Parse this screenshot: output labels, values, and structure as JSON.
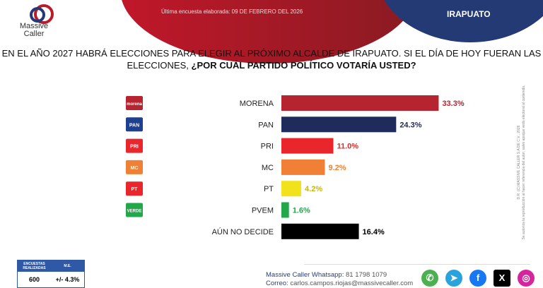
{
  "header": {
    "date_text": "Última encuesta elaborada: 09 DE FEBRERO DEL 2026",
    "city": "IRAPUATO",
    "logo_text": [
      "Massive",
      "Caller"
    ]
  },
  "question": {
    "part1": "EN EL AÑO 2027 HABRÁ ELECCIONES PARA ELEGIR AL PRÓXIMO ALCALDE DE IRAPUATO. SI EL DÍA DE HOY FUERAN LAS ELECCIONES, ",
    "part2": "¿POR CUÁL PARTIDO POLÍTICO VOTARÍA USTED?"
  },
  "chart_data": {
    "type": "bar",
    "orientation": "horizontal",
    "categories": [
      "MORENA",
      "PAN",
      "PRI",
      "MC",
      "PT",
      "PVEM",
      "AÚN NO DECIDE"
    ],
    "values": [
      33.3,
      24.3,
      11.0,
      9.2,
      4.2,
      1.6,
      16.4
    ],
    "labels": [
      "33.3%",
      "24.3%",
      "11.0%",
      "9.2%",
      "4.2%",
      "1.6%",
      "16.4%"
    ],
    "colors": [
      "#b5242f",
      "#1f2b5b",
      "#e8262b",
      "#f08035",
      "#f2e21c",
      "#22a84a",
      "#000000"
    ],
    "label_colors": [
      "#b5242f",
      "#1f2b5b",
      "#e8262b",
      "#f08035",
      "#c9b800",
      "#22a84a",
      "#000000"
    ],
    "logos": [
      "morena",
      "PAN",
      "PRI",
      "MC",
      "PT",
      "VERDE"
    ],
    "logo_colors": [
      "#b5242f",
      "#1f3f8f",
      "#e8262b",
      "#f08035",
      "#e8262b",
      "#22a84a"
    ]
  },
  "side_note": {
    "line1": "D.R. (C) MASSIVE CALLER S.A DE C.V., 2026",
    "line2": "Se autoriza la reproducción al hacer referencia del autor, salvo apoque vedo electoral al contenido."
  },
  "sample": {
    "h1": "ENCUESTAS REALIZADAS",
    "h2": "M.E.",
    "v1": "600",
    "v2": "+/- 4.3%"
  },
  "contact": {
    "whatsapp_label": "Massive Caller Whatsapp:",
    "whatsapp": "81 1798 1079",
    "email_label": "Correo:",
    "email": "carlos.campos.riojas@massivecaller.com"
  },
  "social": [
    {
      "name": "whatsapp",
      "glyph": "✆",
      "color": "#4caf50"
    },
    {
      "name": "telegram",
      "glyph": "➤",
      "color": "#2aa3dd"
    },
    {
      "name": "facebook",
      "glyph": "f",
      "color": "#1877f2"
    },
    {
      "name": "x",
      "glyph": "X",
      "color": "#000000"
    },
    {
      "name": "instagram",
      "glyph": "◎",
      "color": "#d6249f"
    }
  ]
}
